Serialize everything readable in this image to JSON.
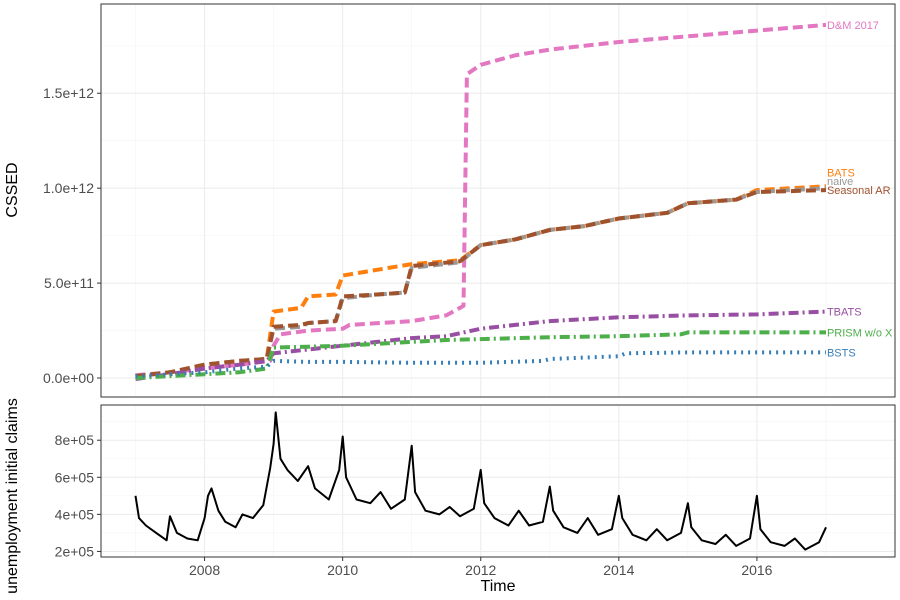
{
  "chart_data": [
    {
      "type": "line",
      "panel": "top",
      "title": "",
      "xlabel": "",
      "ylabel": "CSSED",
      "xlim": [
        2006.5,
        2018.0
      ],
      "ylim": [
        -100000000000.0,
        1970000000000.0
      ],
      "x_ticks": [
        2008,
        2010,
        2012,
        2014,
        2016
      ],
      "y_ticks": [
        0,
        500000000000,
        1000000000000,
        1500000000000
      ],
      "y_tick_labels": [
        "0.0e+00",
        "5.0e+11",
        "1.0e+12",
        "1.5e+12"
      ],
      "grid": true,
      "legend": "direct labels at right end of lines",
      "series": [
        {
          "name": "D&M 2017",
          "color": "#e377c2",
          "dash": "dashed",
          "points": [
            [
              2007.0,
              15000000000.0
            ],
            [
              2007.5,
              30000000000.0
            ],
            [
              2008.0,
              50000000000.0
            ],
            [
              2008.5,
              70000000000.0
            ],
            [
              2008.95,
              90000000000.0
            ],
            [
              2009.0,
              170000000000.0
            ],
            [
              2009.1,
              230000000000.0
            ],
            [
              2009.5,
              250000000000.0
            ],
            [
              2010.0,
              260000000000.0
            ],
            [
              2010.1,
              280000000000.0
            ],
            [
              2011.0,
              300000000000.0
            ],
            [
              2011.5,
              330000000000.0
            ],
            [
              2011.75,
              380000000000.0
            ],
            [
              2011.8,
              1600000000000.0
            ],
            [
              2012.0,
              1650000000000.0
            ],
            [
              2012.5,
              1700000000000.0
            ],
            [
              2013.0,
              1730000000000.0
            ],
            [
              2014.0,
              1770000000000.0
            ],
            [
              2015.0,
              1800000000000.0
            ],
            [
              2016.0,
              1830000000000.0
            ],
            [
              2017.0,
              1860000000000.0
            ]
          ]
        },
        {
          "name": "BATS",
          "color": "#ff7f0e",
          "dash": "dashed",
          "points": [
            [
              2007.0,
              10000000000.0
            ],
            [
              2007.5,
              30000000000.0
            ],
            [
              2008.0,
              70000000000.0
            ],
            [
              2008.5,
              90000000000.0
            ],
            [
              2008.9,
              100000000000.0
            ],
            [
              2009.0,
              350000000000.0
            ],
            [
              2009.4,
              370000000000.0
            ],
            [
              2009.5,
              430000000000.0
            ],
            [
              2009.9,
              440000000000.0
            ],
            [
              2010.0,
              540000000000.0
            ],
            [
              2010.5,
              570000000000.0
            ],
            [
              2011.0,
              600000000000.0
            ],
            [
              2011.7,
              620000000000.0
            ],
            [
              2012.0,
              700000000000.0
            ],
            [
              2012.5,
              730000000000.0
            ],
            [
              2013.0,
              780000000000.0
            ],
            [
              2013.5,
              800000000000.0
            ],
            [
              2014.0,
              840000000000.0
            ],
            [
              2014.7,
              870000000000.0
            ],
            [
              2015.0,
              920000000000.0
            ],
            [
              2015.7,
              940000000000.0
            ],
            [
              2016.0,
              990000000000.0
            ],
            [
              2017.0,
              1010000000000.0
            ]
          ]
        },
        {
          "name": "naive",
          "color": "#999999",
          "dash": "dashed",
          "points": [
            [
              2007.0,
              10000000000.0
            ],
            [
              2007.5,
              30000000000.0
            ],
            [
              2008.0,
              70000000000.0
            ],
            [
              2008.5,
              90000000000.0
            ],
            [
              2008.9,
              100000000000.0
            ],
            [
              2009.0,
              260000000000.0
            ],
            [
              2009.4,
              270000000000.0
            ],
            [
              2009.5,
              290000000000.0
            ],
            [
              2009.9,
              300000000000.0
            ],
            [
              2010.0,
              420000000000.0
            ],
            [
              2010.5,
              440000000000.0
            ],
            [
              2010.9,
              450000000000.0
            ],
            [
              2011.0,
              580000000000.0
            ],
            [
              2011.7,
              610000000000.0
            ],
            [
              2012.0,
              700000000000.0
            ],
            [
              2012.5,
              730000000000.0
            ],
            [
              2013.0,
              780000000000.0
            ],
            [
              2013.5,
              800000000000.0
            ],
            [
              2014.0,
              840000000000.0
            ],
            [
              2014.7,
              870000000000.0
            ],
            [
              2015.0,
              920000000000.0
            ],
            [
              2015.7,
              940000000000.0
            ],
            [
              2016.0,
              980000000000.0
            ],
            [
              2017.0,
              1000000000000.0
            ]
          ]
        },
        {
          "name": "Seasonal AR",
          "color": "#a0522d",
          "dash": "dashed",
          "points": [
            [
              2007.0,
              10000000000.0
            ],
            [
              2007.5,
              30000000000.0
            ],
            [
              2008.0,
              70000000000.0
            ],
            [
              2008.5,
              90000000000.0
            ],
            [
              2008.9,
              100000000000.0
            ],
            [
              2009.0,
              270000000000.0
            ],
            [
              2009.4,
              280000000000.0
            ],
            [
              2009.5,
              290000000000.0
            ],
            [
              2009.9,
              300000000000.0
            ],
            [
              2010.0,
              430000000000.0
            ],
            [
              2010.5,
              440000000000.0
            ],
            [
              2010.9,
              450000000000.0
            ],
            [
              2011.0,
              590000000000.0
            ],
            [
              2011.7,
              615000000000.0
            ],
            [
              2012.0,
              700000000000.0
            ],
            [
              2012.5,
              730000000000.0
            ],
            [
              2013.0,
              780000000000.0
            ],
            [
              2013.5,
              800000000000.0
            ],
            [
              2014.0,
              840000000000.0
            ],
            [
              2014.7,
              870000000000.0
            ],
            [
              2015.0,
              920000000000.0
            ],
            [
              2015.7,
              940000000000.0
            ],
            [
              2016.0,
              980000000000.0
            ],
            [
              2017.0,
              990000000000.0
            ]
          ]
        },
        {
          "name": "TBATS",
          "color": "#984ea3",
          "dash": "dashdot",
          "points": [
            [
              2007.0,
              -5000000000.0
            ],
            [
              2007.5,
              20000000000.0
            ],
            [
              2008.0,
              50000000000.0
            ],
            [
              2008.5,
              70000000000.0
            ],
            [
              2008.9,
              90000000000.0
            ],
            [
              2009.0,
              130000000000.0
            ],
            [
              2009.5,
              150000000000.0
            ],
            [
              2010.0,
              170000000000.0
            ],
            [
              2010.5,
              190000000000.0
            ],
            [
              2011.0,
              210000000000.0
            ],
            [
              2011.5,
              220000000000.0
            ],
            [
              2012.0,
              260000000000.0
            ],
            [
              2012.5,
              280000000000.0
            ],
            [
              2013.0,
              300000000000.0
            ],
            [
              2014.0,
              320000000000.0
            ],
            [
              2015.0,
              330000000000.0
            ],
            [
              2016.0,
              335000000000.0
            ],
            [
              2017.0,
              350000000000.0
            ]
          ]
        },
        {
          "name": "PRISM w/o X",
          "color": "#4daf4a",
          "dash": "dashdot",
          "points": [
            [
              2007.0,
              0
            ],
            [
              2007.5,
              10000000000.0
            ],
            [
              2008.0,
              20000000000.0
            ],
            [
              2008.5,
              30000000000.0
            ],
            [
              2008.9,
              50000000000.0
            ],
            [
              2009.0,
              160000000000.0
            ],
            [
              2009.5,
              165000000000.0
            ],
            [
              2010.0,
              170000000000.0
            ],
            [
              2010.5,
              180000000000.0
            ],
            [
              2011.0,
              190000000000.0
            ],
            [
              2011.5,
              200000000000.0
            ],
            [
              2012.0,
              205000000000.0
            ],
            [
              2013.0,
              215000000000.0
            ],
            [
              2014.0,
              220000000000.0
            ],
            [
              2014.9,
              230000000000.0
            ],
            [
              2015.0,
              240000000000.0
            ],
            [
              2016.0,
              240000000000.0
            ],
            [
              2017.0,
              240000000000.0
            ]
          ]
        },
        {
          "name": "BSTS",
          "color": "#377eb8",
          "dash": "dotted",
          "points": [
            [
              2007.0,
              10000000000.0
            ],
            [
              2007.5,
              20000000000.0
            ],
            [
              2008.0,
              30000000000.0
            ],
            [
              2008.5,
              50000000000.0
            ],
            [
              2008.9,
              60000000000.0
            ],
            [
              2009.0,
              90000000000.0
            ],
            [
              2009.5,
              85000000000.0
            ],
            [
              2010.0,
              85000000000.0
            ],
            [
              2011.0,
              80000000000.0
            ],
            [
              2012.0,
              80000000000.0
            ],
            [
              2012.9,
              90000000000.0
            ],
            [
              2013.0,
              100000000000.0
            ],
            [
              2014.0,
              115000000000.0
            ],
            [
              2014.1,
              130000000000.0
            ],
            [
              2015.0,
              135000000000.0
            ],
            [
              2016.0,
              135000000000.0
            ],
            [
              2017.0,
              135000000000.0
            ]
          ]
        }
      ]
    },
    {
      "type": "line",
      "panel": "bottom",
      "title": "",
      "xlabel": "Time",
      "ylabel": "unemployment initial claims",
      "xlim": [
        2006.5,
        2018.0
      ],
      "ylim": [
        170000,
        990000
      ],
      "x_ticks": [
        2008,
        2010,
        2012,
        2014,
        2016
      ],
      "x_tick_labels": [
        "2008",
        "2010",
        "2012",
        "2014",
        "2016"
      ],
      "y_ticks": [
        200000,
        400000,
        600000,
        800000
      ],
      "y_tick_labels": [
        "2e+05",
        "4e+05",
        "6e+05",
        "8e+05"
      ],
      "grid": true,
      "series": [
        {
          "name": "",
          "color": "#000000",
          "dash": "solid",
          "points": [
            [
              2007.0,
              500000
            ],
            [
              2007.05,
              380000
            ],
            [
              2007.15,
              340000
            ],
            [
              2007.3,
              300000
            ],
            [
              2007.45,
              260000
            ],
            [
              2007.5,
              390000
            ],
            [
              2007.6,
              300000
            ],
            [
              2007.75,
              270000
            ],
            [
              2007.9,
              260000
            ],
            [
              2008.0,
              380000
            ],
            [
              2008.05,
              500000
            ],
            [
              2008.1,
              540000
            ],
            [
              2008.2,
              420000
            ],
            [
              2008.3,
              360000
            ],
            [
              2008.45,
              330000
            ],
            [
              2008.55,
              400000
            ],
            [
              2008.7,
              380000
            ],
            [
              2008.85,
              450000
            ],
            [
              2008.95,
              650000
            ],
            [
              2009.0,
              780000
            ],
            [
              2009.03,
              950000
            ],
            [
              2009.1,
              700000
            ],
            [
              2009.2,
              640000
            ],
            [
              2009.35,
              580000
            ],
            [
              2009.5,
              660000
            ],
            [
              2009.6,
              540000
            ],
            [
              2009.8,
              480000
            ],
            [
              2009.95,
              640000
            ],
            [
              2010.0,
              820000
            ],
            [
              2010.05,
              600000
            ],
            [
              2010.2,
              480000
            ],
            [
              2010.4,
              460000
            ],
            [
              2010.55,
              520000
            ],
            [
              2010.7,
              430000
            ],
            [
              2010.9,
              480000
            ],
            [
              2011.0,
              770000
            ],
            [
              2011.05,
              520000
            ],
            [
              2011.2,
              420000
            ],
            [
              2011.4,
              400000
            ],
            [
              2011.55,
              440000
            ],
            [
              2011.7,
              390000
            ],
            [
              2011.9,
              430000
            ],
            [
              2012.0,
              640000
            ],
            [
              2012.05,
              460000
            ],
            [
              2012.2,
              380000
            ],
            [
              2012.4,
              340000
            ],
            [
              2012.55,
              420000
            ],
            [
              2012.7,
              340000
            ],
            [
              2012.9,
              360000
            ],
            [
              2013.0,
              550000
            ],
            [
              2013.05,
              420000
            ],
            [
              2013.2,
              330000
            ],
            [
              2013.4,
              300000
            ],
            [
              2013.55,
              380000
            ],
            [
              2013.7,
              290000
            ],
            [
              2013.9,
              320000
            ],
            [
              2014.0,
              500000
            ],
            [
              2014.05,
              380000
            ],
            [
              2014.2,
              290000
            ],
            [
              2014.4,
              260000
            ],
            [
              2014.55,
              320000
            ],
            [
              2014.7,
              260000
            ],
            [
              2014.9,
              300000
            ],
            [
              2015.0,
              460000
            ],
            [
              2015.05,
              330000
            ],
            [
              2015.2,
              260000
            ],
            [
              2015.4,
              240000
            ],
            [
              2015.55,
              290000
            ],
            [
              2015.7,
              230000
            ],
            [
              2015.9,
              270000
            ],
            [
              2016.0,
              500000
            ],
            [
              2016.05,
              320000
            ],
            [
              2016.2,
              250000
            ],
            [
              2016.4,
              230000
            ],
            [
              2016.55,
              270000
            ],
            [
              2016.7,
              210000
            ],
            [
              2016.9,
              250000
            ],
            [
              2017.0,
              330000
            ]
          ]
        }
      ]
    }
  ]
}
